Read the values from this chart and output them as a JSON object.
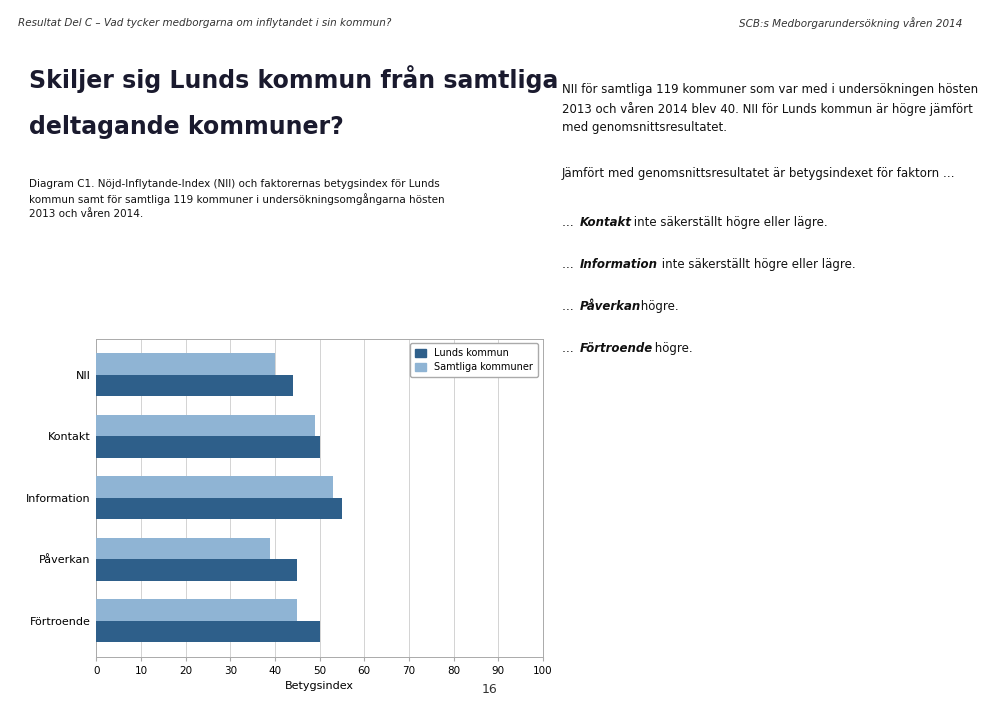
{
  "categories": [
    "NII",
    "Kontakt",
    "Information",
    "Påverkan",
    "Förtroende"
  ],
  "lunds_values": [
    44,
    50,
    55,
    45,
    50
  ],
  "samtliga_values": [
    40,
    49,
    53,
    39,
    45
  ],
  "lunds_color": "#2E5F8A",
  "samtliga_color": "#8FB4D4",
  "xlabel": "Betygsindex",
  "xlim": [
    0,
    100
  ],
  "xticks": [
    0,
    10,
    20,
    30,
    40,
    50,
    60,
    70,
    80,
    90,
    100
  ],
  "legend_lunds": "Lunds kommun",
  "legend_samtliga": "Samtliga kommuner",
  "bar_height": 0.35,
  "header_left": "Resultat Del C – Vad tycker medborgarna om inflytandet i sin kommun?",
  "header_right": "SCB:s Medborgarundersökning våren 2014",
  "title_line1": "Skiljer sig Lunds kommun från samtliga",
  "title_line2": "deltagande kommuner?",
  "diagram_caption": "Diagram C1. Nöjd-Inflytande-Index (NII) och faktorernas betygsindex för Lunds\nkommun samt för samtliga 119 kommuner i undersökningsomgångarna hösten\n2013 och våren 2014.",
  "right_para1": "NII för samtliga 119 kommuner som var med i undersökningen hösten\n2013 och våren 2014 blev 40. NII för Lunds kommun är högre jämfört\nmed genomsnittsresultatet.",
  "right_para2": "Jämfört med genomsnittsresultatet är betygsindexet för faktorn …",
  "bullet1_prefix": "… ",
  "bullet1_bold": "Kontakt",
  "bullet1_rest": " inte säkerställt högre eller lägre.",
  "bullet2_prefix": "… ",
  "bullet2_bold": "Information",
  "bullet2_rest": " inte säkerställt högre eller lägre.",
  "bullet3_prefix": "… ",
  "bullet3_bold": "Påverkan",
  "bullet3_rest": " högre.",
  "bullet4_prefix": "… ",
  "bullet4_bold": "Förtroende",
  "bullet4_rest": " högre.",
  "page_number": "16",
  "background_color": "#ffffff"
}
